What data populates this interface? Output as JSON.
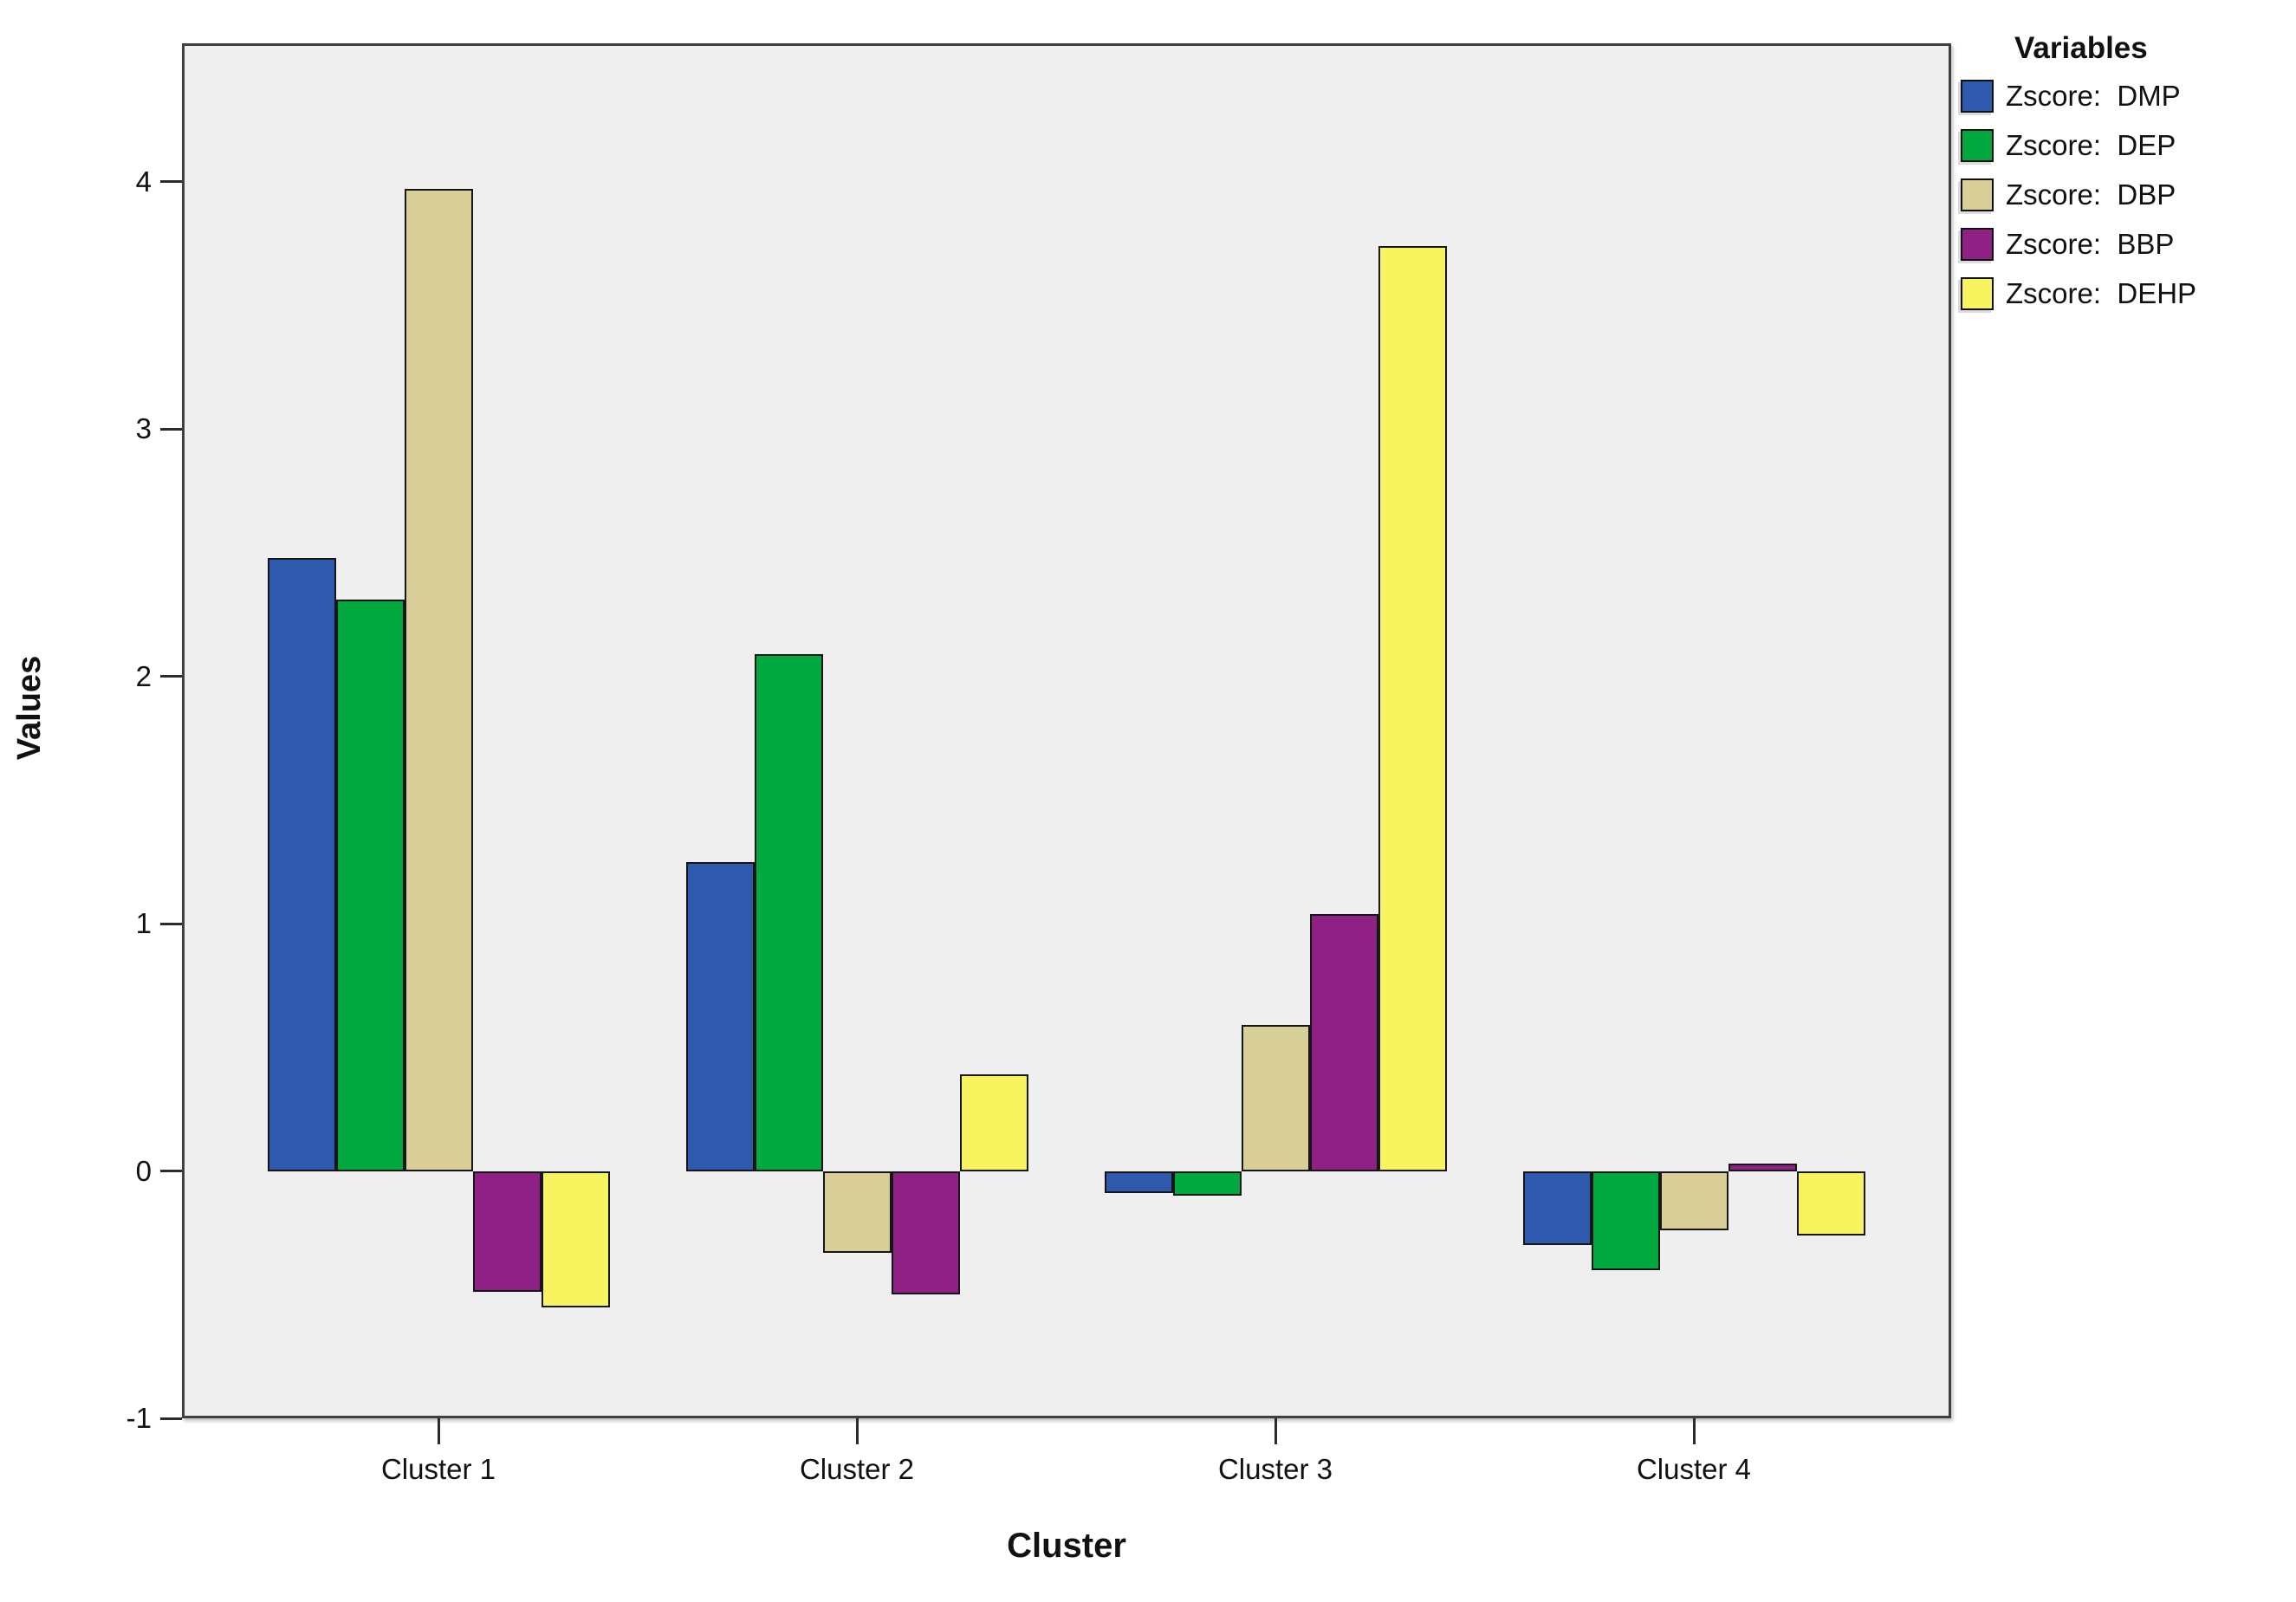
{
  "chart_data": {
    "type": "bar",
    "title": "",
    "categories": [
      "Cluster 1",
      "Cluster 2",
      "Cluster 3",
      "Cluster 4"
    ],
    "series": [
      {
        "name": "Zscore:  DMP",
        "short": "dmp",
        "color": "#2E59AC",
        "values": [
          2.48,
          1.25,
          -0.09,
          -0.3
        ]
      },
      {
        "name": "Zscore:  DEP",
        "short": "dep",
        "color": "#00A83F",
        "values": [
          2.31,
          2.09,
          -0.1,
          -0.4
        ]
      },
      {
        "name": "Zscore:  DBP",
        "short": "dbp",
        "color": "#D8CE97",
        "values": [
          3.97,
          -0.33,
          0.59,
          -0.24
        ]
      },
      {
        "name": "Zscore:  BBP",
        "short": "bbp",
        "color": "#8F2185",
        "values": [
          -0.49,
          -0.5,
          1.04,
          0.03
        ]
      },
      {
        "name": "Zscore:  DEHP",
        "short": "dehp",
        "color": "#F8F45F",
        "values": [
          -0.55,
          0.39,
          3.74,
          -0.26
        ]
      }
    ],
    "xlabel": "Cluster",
    "ylabel": "Values",
    "ylim": [
      -1,
      4.56
    ],
    "yticks": [
      -1,
      0,
      1,
      2,
      3,
      4
    ],
    "grid": false,
    "legend_title": "Variables",
    "legend_position": "top-right",
    "plot_bg": "#F0EFEF",
    "frame_color": "#3F3F3F"
  }
}
